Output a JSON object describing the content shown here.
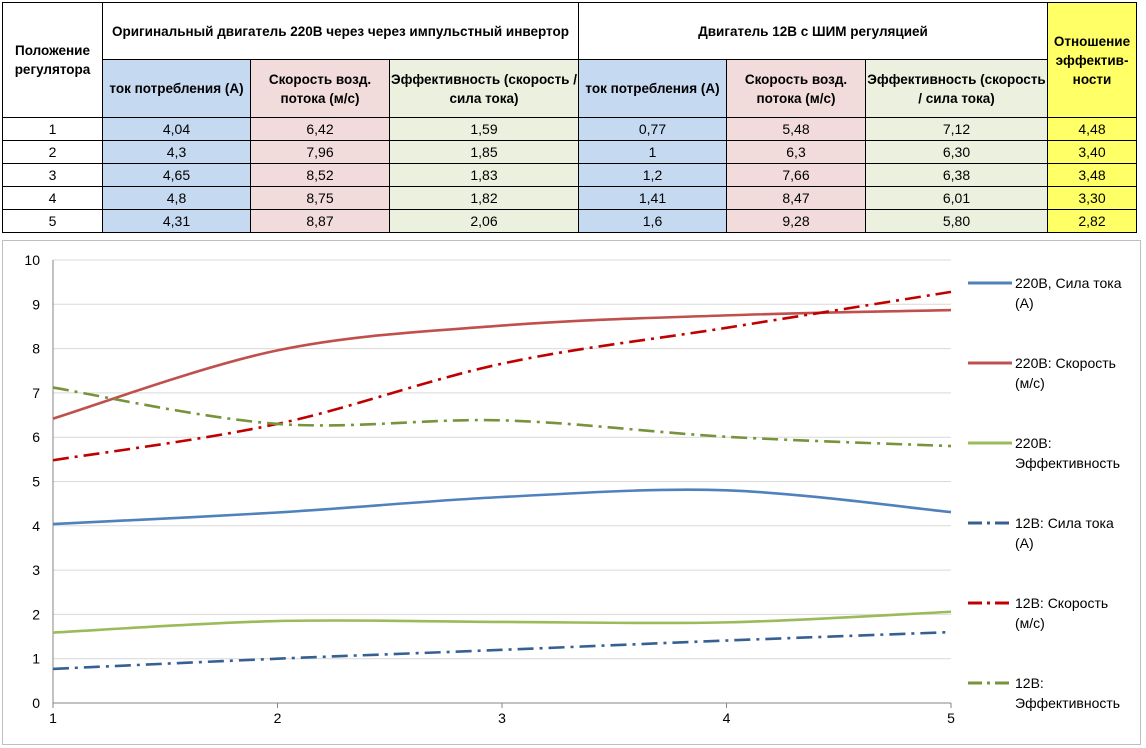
{
  "table": {
    "pos_header": "Положение регулятора",
    "group1_header": "Оригинальный двигатель 220В через через импульстный инвертор",
    "group2_header": "Двигатель 12В с ШИМ регуляцией",
    "ratio_header": "Отношение эффектив-ности",
    "sub_headers": [
      "ток потребления (А)",
      "Скорость возд. потока (м/с)",
      "Эффективность (скорость / сила тока)",
      "ток потребления (А)",
      "Скорость возд. потока (м/с)",
      "Эффективность (скорость / сила тока)"
    ],
    "rows": [
      [
        "1",
        "4,04",
        "6,42",
        "1,59",
        "0,77",
        "5,48",
        "7,12",
        "4,48"
      ],
      [
        "2",
        "4,3",
        "7,96",
        "1,85",
        "1",
        "6,3",
        "6,30",
        "3,40"
      ],
      [
        "3",
        "4,65",
        "8,52",
        "1,83",
        "1,2",
        "7,66",
        "6,38",
        "3,48"
      ],
      [
        "4",
        "4,8",
        "8,75",
        "1,82",
        "1,41",
        "8,47",
        "6,01",
        "3,30"
      ],
      [
        "5",
        "4,31",
        "8,87",
        "2,06",
        "1,6",
        "9,28",
        "5,80",
        "2,82"
      ]
    ]
  },
  "chart_data": {
    "type": "line",
    "title": "",
    "xlabel": "",
    "ylabel": "",
    "x": [
      1,
      2,
      3,
      4,
      5
    ],
    "xlim": [
      1,
      5
    ],
    "ylim": [
      0,
      10
    ],
    "y_ticks": [
      0,
      1,
      2,
      3,
      4,
      5,
      6,
      7,
      8,
      9,
      10
    ],
    "grid": "horizontal",
    "legend_position": "right",
    "series": [
      {
        "name": "220В, Сила тока (А)",
        "values": [
          4.04,
          4.3,
          4.65,
          4.8,
          4.31
        ],
        "color": "#4f81bd",
        "dash": "solid"
      },
      {
        "name": "220В: Скорость (м/с)",
        "values": [
          6.42,
          7.96,
          8.52,
          8.75,
          8.87
        ],
        "color": "#c0504d",
        "dash": "solid"
      },
      {
        "name": "220В: Эффективность",
        "values": [
          1.59,
          1.85,
          1.83,
          1.82,
          2.06
        ],
        "color": "#9bbb59",
        "dash": "solid"
      },
      {
        "name": "12В: Сила тока (А)",
        "values": [
          0.77,
          1,
          1.2,
          1.41,
          1.6
        ],
        "color": "#376092",
        "dash": "dashdot"
      },
      {
        "name": "12В: Скорость (м/с)",
        "values": [
          5.48,
          6.3,
          7.66,
          8.47,
          9.28
        ],
        "color": "#c00000",
        "dash": "dashdot"
      },
      {
        "name": "12В: Эффективность",
        "values": [
          7.12,
          6.3,
          6.38,
          6.01,
          5.8
        ],
        "color": "#77933c",
        "dash": "dashdot"
      }
    ]
  }
}
